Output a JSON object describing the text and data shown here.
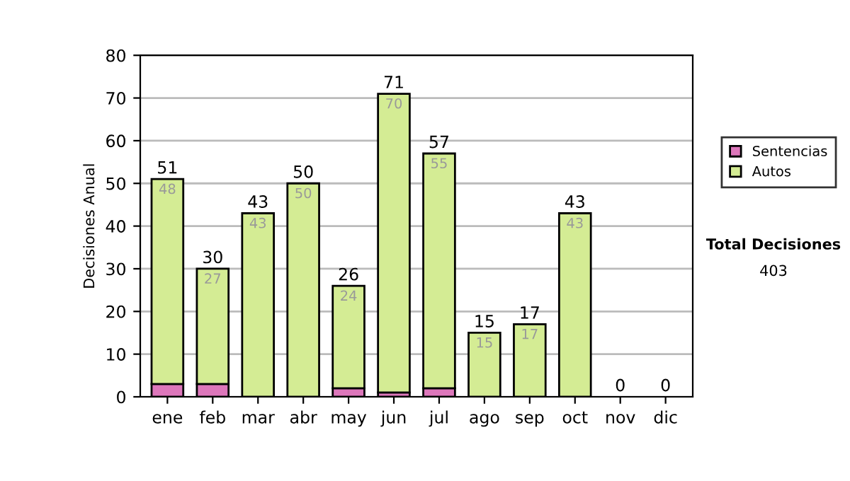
{
  "chart_data": {
    "type": "bar",
    "stacked": true,
    "ylabel": "Decisiones Anual",
    "categories": [
      "ene",
      "feb",
      "mar",
      "abr",
      "may",
      "jun",
      "jul",
      "ago",
      "sep",
      "oct",
      "nov",
      "dic"
    ],
    "series": [
      {
        "name": "Sentencias",
        "color": "#dd77bb",
        "values": [
          3,
          3,
          0,
          0,
          2,
          1,
          2,
          0,
          0,
          0,
          0,
          0
        ]
      },
      {
        "name": "Autos",
        "color": "#d4ec94",
        "values": [
          48,
          27,
          43,
          50,
          24,
          70,
          55,
          15,
          17,
          43,
          0,
          0
        ],
        "value_labels": [
          "48",
          "27",
          "43",
          "50",
          "24",
          "70",
          "55",
          "15",
          "17",
          "43",
          null,
          null
        ]
      }
    ],
    "totals": [
      "51",
      "30",
      "43",
      "50",
      "26",
      "71",
      "57",
      "15",
      "17",
      "43",
      "0",
      "0"
    ],
    "ylim": [
      0,
      80
    ],
    "yticks": [
      0,
      10,
      20,
      30,
      40,
      50,
      60,
      70,
      80
    ],
    "grid": "y",
    "legend": "right",
    "annotations": [
      "Total Decisiones",
      "403"
    ]
  }
}
